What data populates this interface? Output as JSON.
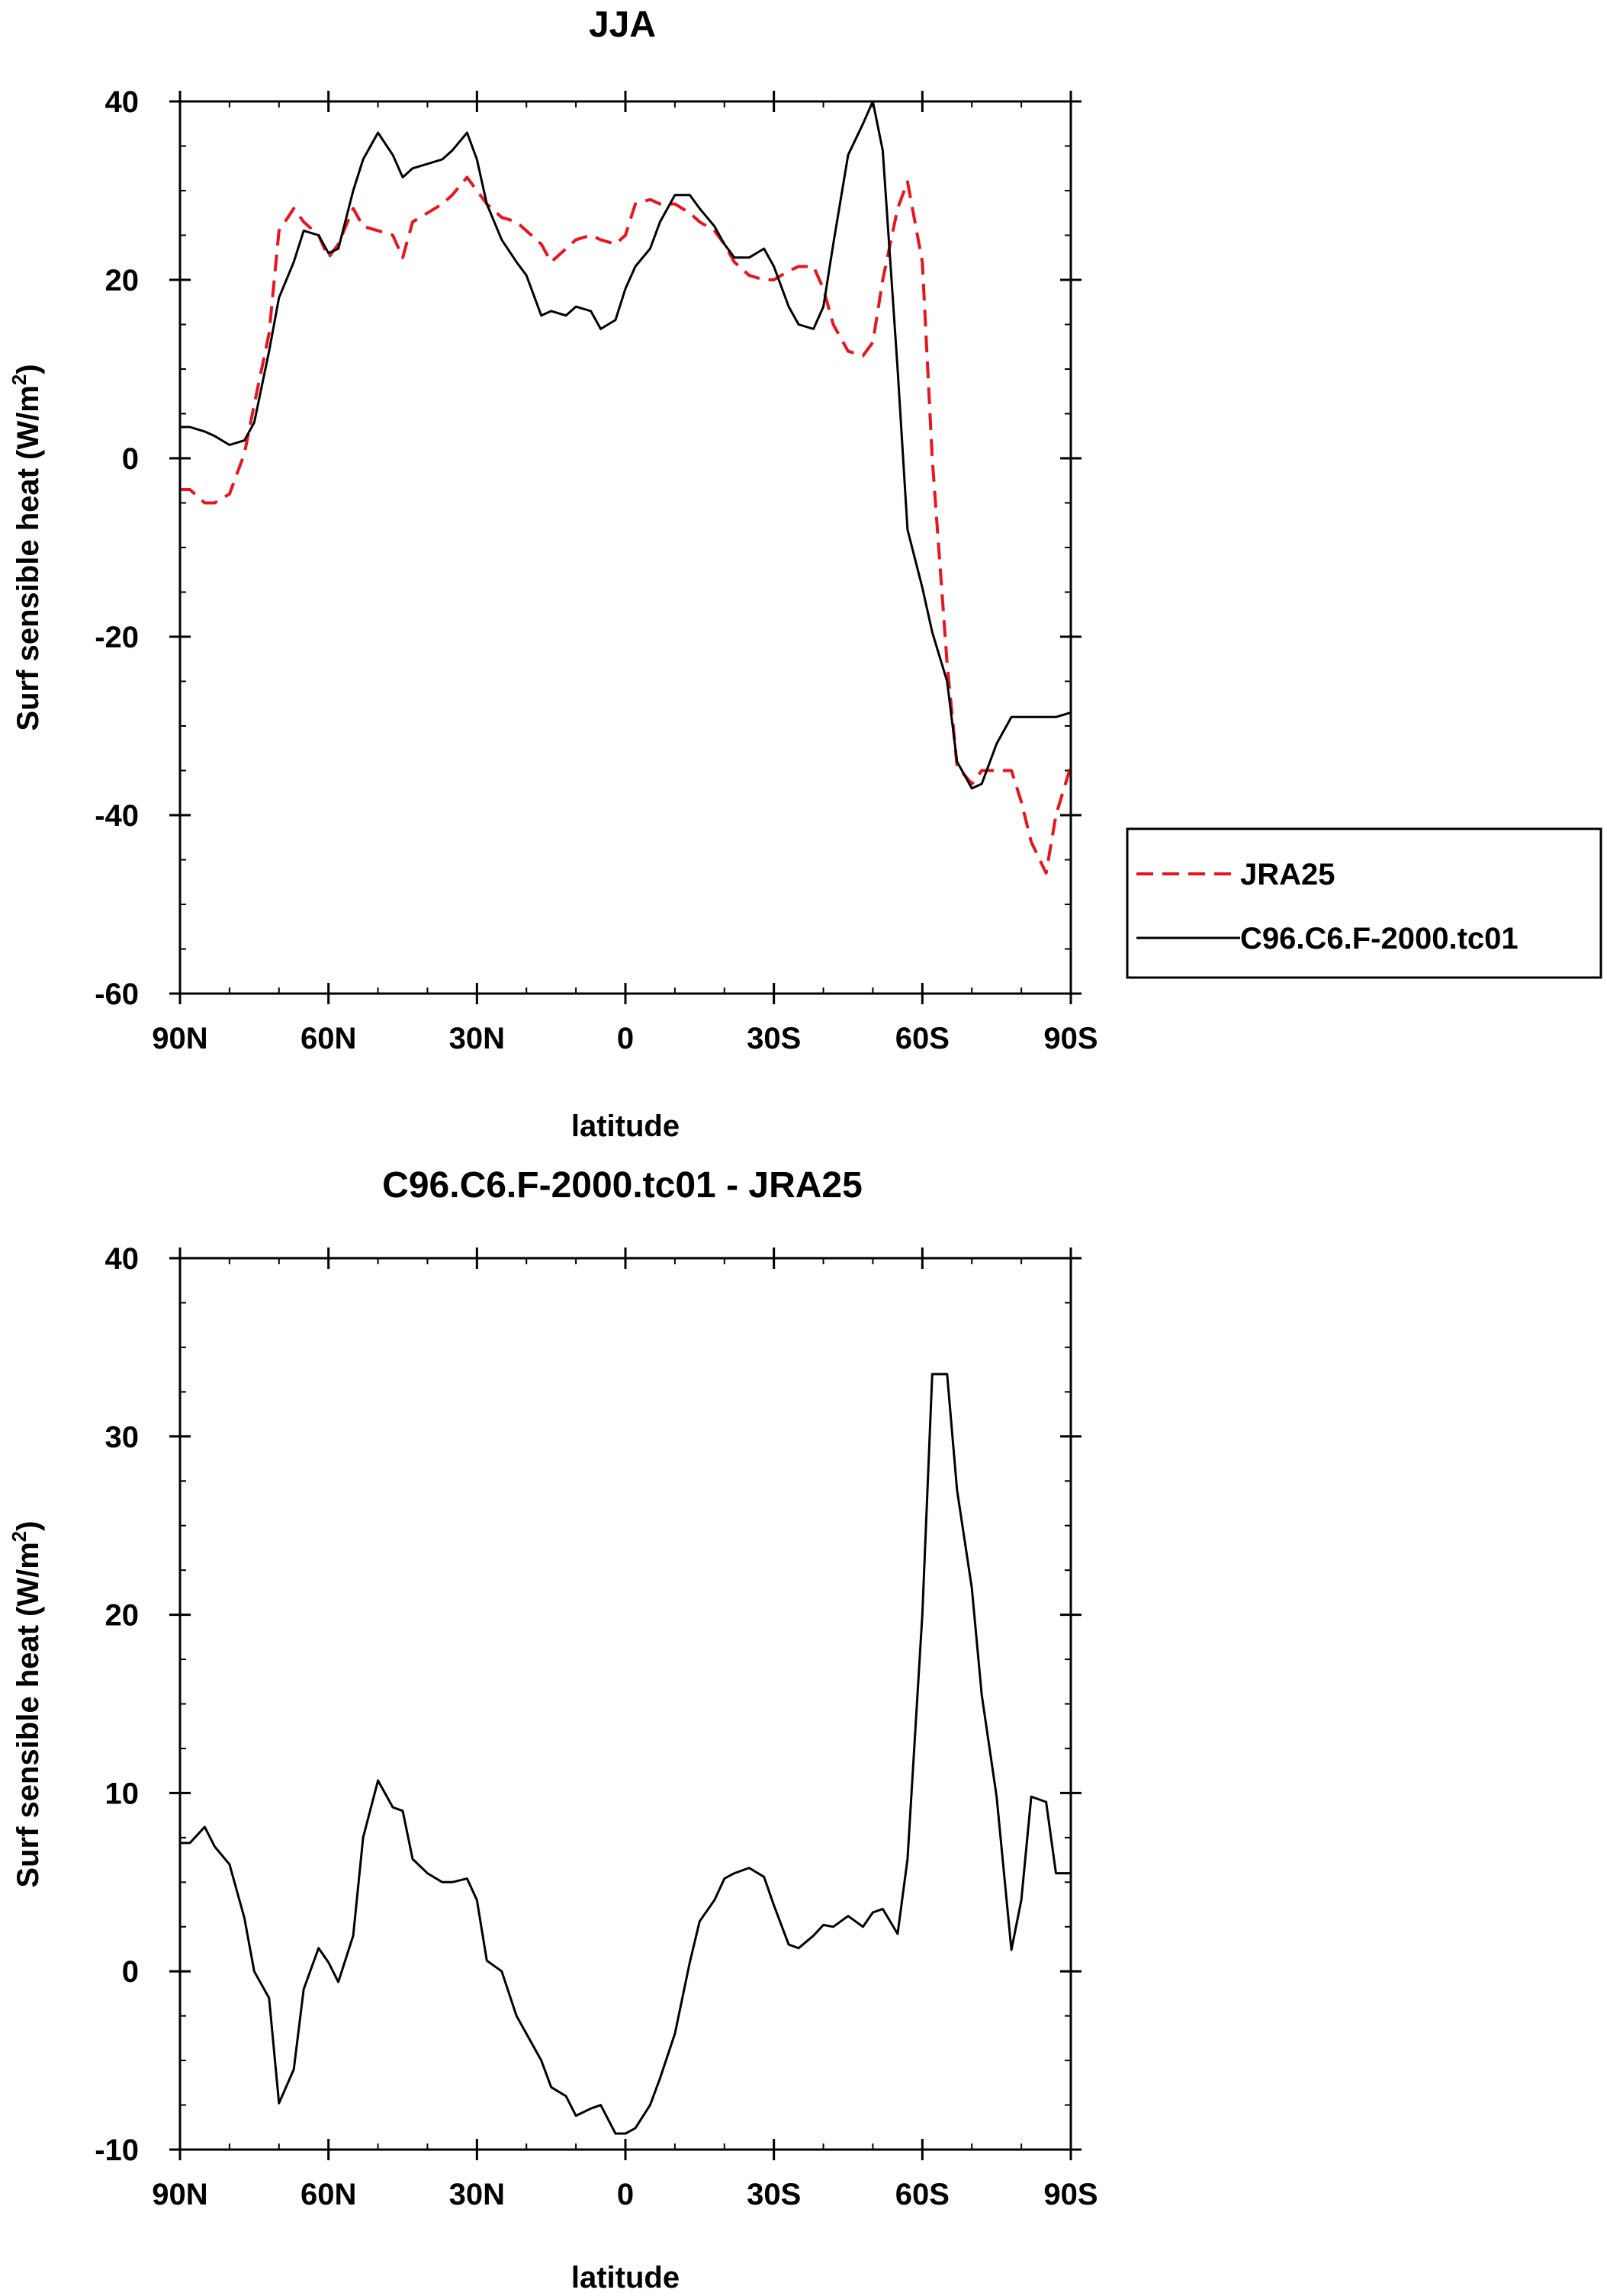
{
  "charts": [
    {
      "id": "top",
      "title": "JJA",
      "xlabel": "latitude",
      "ylabel": "Surf sensible heat (W/m",
      "ylabel_sup": "2",
      "ylabel_close": ")",
      "ylim": [
        -60,
        40
      ],
      "xlim": [
        90,
        -90
      ],
      "yticks": [
        "40",
        "20",
        "0",
        "-20",
        "-40",
        "-60"
      ],
      "yticks_values": [
        40,
        20,
        0,
        -20,
        -40,
        -60
      ],
      "xticks": [
        "90N",
        "60N",
        "30N",
        "0",
        "30S",
        "60S",
        "90S"
      ],
      "xticks_values": [
        90,
        60,
        30,
        0,
        -30,
        -60,
        -90
      ]
    },
    {
      "id": "bottom",
      "title": "C96.C6.F-2000.tc01 - JRA25",
      "xlabel": "latitude",
      "ylabel": "Surf sensible heat (W/m",
      "ylabel_sup": "2",
      "ylabel_close": ")",
      "ylim": [
        -10,
        40
      ],
      "xlim": [
        90,
        -90
      ],
      "yticks": [
        "40",
        "30",
        "20",
        "10",
        "0",
        "-10"
      ],
      "yticks_values": [
        40,
        30,
        20,
        10,
        0,
        -10
      ],
      "xticks": [
        "90N",
        "60N",
        "30N",
        "0",
        "30S",
        "60S",
        "90S"
      ],
      "xticks_values": [
        90,
        60,
        30,
        0,
        -30,
        -60,
        -90
      ]
    }
  ],
  "legend": {
    "entries": [
      {
        "label": "JRA25",
        "color": "#e8141e",
        "dash": true
      },
      {
        "label": "C96.C6.F-2000.tc01",
        "color": "#000000",
        "dash": false
      }
    ]
  },
  "chart_data": [
    {
      "type": "line",
      "title": "JJA",
      "xlabel": "latitude",
      "ylabel": "Surf sensible heat (W/m2)",
      "ylim": [
        -60,
        40
      ],
      "x": [
        90,
        88,
        85,
        83,
        80,
        77,
        75,
        72,
        70,
        67,
        65,
        62,
        60,
        58,
        55,
        53,
        50,
        47,
        45,
        43,
        40,
        37,
        35,
        32,
        30,
        28,
        25,
        22,
        20,
        17,
        15,
        12,
        10,
        7,
        5,
        2,
        0,
        -2,
        -5,
        -7,
        -10,
        -13,
        -15,
        -18,
        -20,
        -22,
        -25,
        -28,
        -30,
        -33,
        -35,
        -38,
        -40,
        -42,
        -45,
        -48,
        -50,
        -52,
        -55,
        -57,
        -60,
        -62,
        -65,
        -67,
        -70,
        -72,
        -75,
        -78,
        -80,
        -82,
        -85,
        -87,
        -90
      ],
      "series": [
        {
          "name": "JRA25",
          "values": [
            -3.5,
            -3.5,
            -5.0,
            -5.0,
            -4.0,
            0.5,
            6.0,
            14.0,
            25.5,
            28.0,
            26.5,
            25.0,
            22.5,
            24.0,
            28.0,
            26.0,
            25.5,
            25.0,
            22.5,
            26.5,
            27.5,
            28.5,
            29.5,
            31.5,
            30.0,
            28.5,
            27.0,
            26.5,
            25.5,
            24.0,
            22.0,
            23.5,
            24.5,
            25.0,
            24.5,
            24.0,
            25.0,
            28.5,
            29.0,
            28.5,
            28.5,
            27.5,
            26.5,
            25.5,
            24.0,
            22.0,
            20.5,
            20.0,
            20.0,
            21.0,
            21.5,
            21.5,
            19.0,
            15.0,
            12.0,
            11.5,
            13.0,
            20.0,
            28.0,
            31.0,
            22.0,
            0.0,
            -23.0,
            -34.5,
            -36.5,
            -35.0,
            -35.0,
            -35.0,
            -38.5,
            -43.0,
            -46.5,
            -40.0,
            -34.5
          ]
        },
        {
          "name": "C96.C6.F-2000.tc01",
          "values": [
            3.5,
            3.5,
            3.0,
            2.5,
            1.5,
            2.0,
            4.0,
            12.0,
            18.0,
            22.0,
            25.5,
            25.0,
            23.0,
            23.5,
            30.0,
            33.5,
            36.5,
            34.0,
            31.5,
            32.5,
            33.0,
            33.5,
            34.5,
            36.5,
            33.5,
            28.5,
            24.5,
            22.0,
            20.5,
            16.0,
            16.5,
            16.0,
            17.0,
            16.5,
            14.5,
            15.5,
            19.0,
            21.5,
            23.5,
            26.5,
            29.5,
            29.5,
            28.0,
            26.0,
            24.0,
            22.5,
            22.5,
            23.5,
            21.5,
            17.0,
            15.0,
            14.5,
            17.0,
            24.0,
            34.0,
            37.5,
            40.0,
            34.5,
            10.0,
            -8.0,
            -14.5,
            -19.5,
            -25.0,
            -34.0,
            -37.0,
            -36.5,
            -32.0,
            -29.0,
            -29.0,
            -29.0,
            -29.0,
            -29.0,
            -28.5
          ]
        }
      ]
    },
    {
      "type": "line",
      "title": "C96.C6.F-2000.tc01 - JRA25",
      "xlabel": "latitude",
      "ylabel": "Surf sensible heat (W/m2)",
      "ylim": [
        -10,
        40
      ],
      "x": [
        90,
        88,
        85,
        83,
        80,
        77,
        75,
        72,
        70,
        67,
        65,
        62,
        60,
        58,
        55,
        53,
        50,
        47,
        45,
        43,
        40,
        37,
        35,
        32,
        30,
        28,
        25,
        22,
        20,
        17,
        15,
        12,
        10,
        7,
        5,
        2,
        0,
        -2,
        -5,
        -7,
        -10,
        -13,
        -15,
        -18,
        -20,
        -22,
        -25,
        -28,
        -30,
        -33,
        -35,
        -38,
        -40,
        -42,
        -45,
        -48,
        -50,
        -52,
        -55,
        -57,
        -60,
        -62,
        -65,
        -67,
        -70,
        -72,
        -75,
        -78,
        -80,
        -82,
        -85,
        -87,
        -90
      ],
      "series": [
        {
          "name": "C96.C6.F-2000.tc01 - JRA25",
          "values": [
            7.2,
            7.2,
            8.1,
            7.0,
            6.0,
            3.0,
            0.0,
            -1.5,
            -7.4,
            -5.5,
            -1.0,
            1.3,
            0.5,
            -0.6,
            2.0,
            7.5,
            10.7,
            9.2,
            9.0,
            6.3,
            5.5,
            5.0,
            5.0,
            5.2,
            4.0,
            0.6,
            0.0,
            -2.5,
            -3.5,
            -5.0,
            -6.5,
            -7.0,
            -8.1,
            -7.7,
            -7.5,
            -9.1,
            -9.1,
            -8.8,
            -7.5,
            -6.0,
            -3.5,
            0.5,
            2.8,
            4.0,
            5.2,
            5.5,
            5.8,
            5.3,
            3.7,
            1.5,
            1.3,
            2.0,
            2.6,
            2.5,
            3.1,
            2.5,
            3.3,
            3.5,
            2.1,
            6.3,
            20.0,
            33.5,
            33.5,
            27.0,
            21.5,
            15.5,
            9.8,
            1.2,
            4.0,
            9.8,
            9.5,
            5.5,
            5.5
          ]
        }
      ]
    }
  ]
}
